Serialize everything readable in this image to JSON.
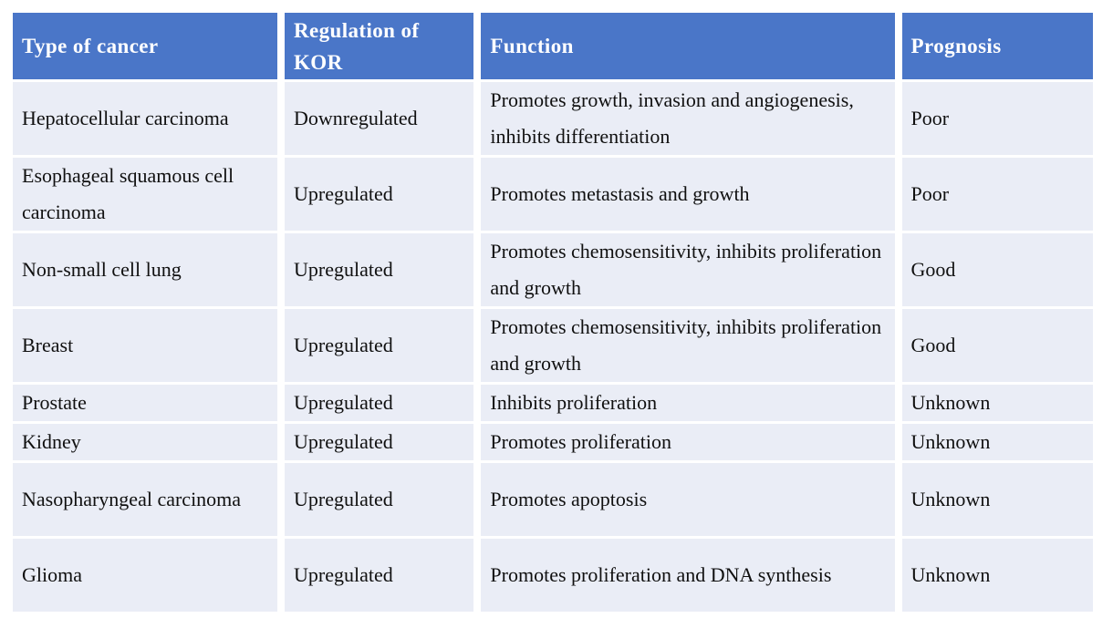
{
  "colors": {
    "header_bg": "#4A76C8",
    "header_text": "#FFFFFF",
    "row_bg": "#EAEDF6",
    "body_text": "#101010",
    "gap": "#FFFFFF"
  },
  "table": {
    "columns": [
      {
        "label": "Type of cancer"
      },
      {
        "label": "Regulation of KOR"
      },
      {
        "label": "Function"
      },
      {
        "label": "Prognosis"
      }
    ],
    "rows": [
      {
        "cancer_type": "Hepatocellular carcinoma",
        "regulation": "Downregulated",
        "function": "Promotes growth, invasion and angiogenesis, inhibits differentiation",
        "prognosis": "Poor"
      },
      {
        "cancer_type": "Esophageal squamous cell carcinoma",
        "regulation": "Upregulated",
        "function": "Promotes metastasis and growth",
        "prognosis": "Poor"
      },
      {
        "cancer_type": "Non-small cell lung",
        "regulation": "Upregulated",
        "function": "Promotes chemosensitivity, inhibits proliferation and growth",
        "prognosis": "Good"
      },
      {
        "cancer_type": "Breast",
        "regulation": "Upregulated",
        "function": "Promotes chemosensitivity, inhibits proliferation and growth",
        "prognosis": "Good"
      },
      {
        "cancer_type": "Prostate",
        "regulation": "Upregulated",
        "function": "Inhibits proliferation",
        "prognosis": "Unknown"
      },
      {
        "cancer_type": "Kidney",
        "regulation": "Upregulated",
        "function": "Promotes proliferation",
        "prognosis": "Unknown"
      },
      {
        "cancer_type": "Nasopharyngeal carcinoma",
        "regulation": "Upregulated",
        "function": "Promotes apoptosis",
        "prognosis": "Unknown"
      },
      {
        "cancer_type": "Glioma",
        "regulation": "Upregulated",
        "function": "Promotes proliferation and DNA synthesis",
        "prognosis": "Unknown"
      }
    ]
  }
}
